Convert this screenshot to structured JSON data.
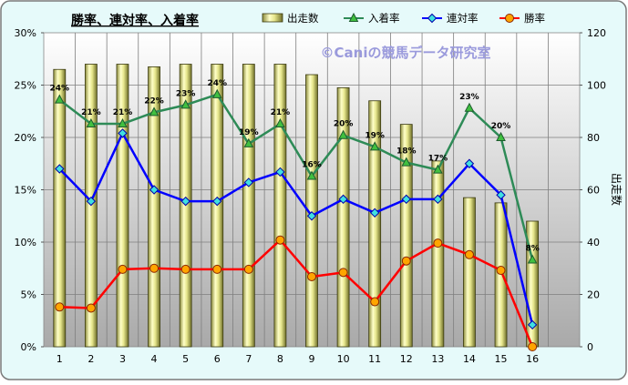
{
  "chart_data": {
    "type": "bar",
    "title": "勝率、連対率、入着率",
    "watermark": "©Caniの競馬データ研究室",
    "categories": [
      "1",
      "2",
      "3",
      "4",
      "5",
      "6",
      "7",
      "8",
      "9",
      "10",
      "11",
      "12",
      "13",
      "14",
      "15",
      "16"
    ],
    "y_left": {
      "ticks": [
        "0%",
        "5%",
        "10%",
        "15%",
        "20%",
        "25%",
        "30%"
      ],
      "range": [
        0,
        30
      ],
      "unit": "%"
    },
    "y_right": {
      "label": "出走数",
      "ticks": [
        "0",
        "20",
        "40",
        "60",
        "80",
        "100",
        "120"
      ],
      "range": [
        0,
        120
      ]
    },
    "grid": true,
    "legend_position": "top",
    "series": [
      {
        "name": "出走数",
        "type": "bar",
        "axis": "right",
        "color": "#F0F0A0",
        "values": [
          106,
          108,
          108,
          107,
          108,
          108,
          108,
          108,
          104,
          99,
          94,
          85,
          71,
          57,
          55,
          48
        ]
      },
      {
        "name": "入着率",
        "type": "line",
        "axis": "left",
        "color": "#2E8B57",
        "marker": "triangle",
        "values": [
          23.6,
          21.3,
          21.3,
          22.4,
          23.1,
          24.1,
          19.4,
          21.3,
          16.3,
          20.2,
          19.1,
          17.6,
          16.9,
          22.8,
          20.0,
          8.3
        ],
        "data_labels": [
          "24%",
          "21%",
          "21%",
          "22%",
          "23%",
          "24%",
          "19%",
          "21%",
          "16%",
          "20%",
          "19%",
          "18%",
          "17%",
          "23%",
          "20%",
          "8%"
        ]
      },
      {
        "name": "連対率",
        "type": "line",
        "axis": "left",
        "color": "#0000FF",
        "marker": "diamond",
        "values": [
          17.0,
          13.9,
          20.4,
          15.0,
          13.9,
          13.9,
          15.7,
          16.7,
          12.5,
          14.1,
          12.8,
          14.1,
          14.1,
          17.5,
          14.5,
          2.1
        ]
      },
      {
        "name": "勝率",
        "type": "line",
        "axis": "left",
        "color": "#FF0000",
        "marker": "circle",
        "values": [
          3.8,
          3.7,
          7.4,
          7.5,
          7.4,
          7.4,
          7.4,
          10.2,
          6.7,
          7.1,
          4.3,
          8.2,
          9.9,
          8.8,
          7.3,
          0.0
        ]
      }
    ]
  }
}
